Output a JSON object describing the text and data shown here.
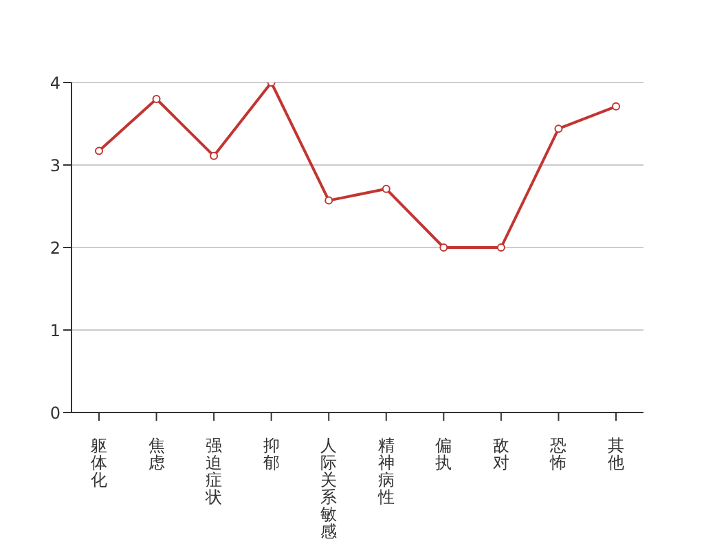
{
  "chart_data": {
    "type": "line",
    "categories": [
      "躯体化",
      "焦虑",
      "强迫症状",
      "抑郁",
      "人际关系敏感",
      "精神病性",
      "偏执",
      "敌对",
      "恐怖",
      "其他"
    ],
    "series": [
      {
        "color": "#c23531",
        "values": [
          3.17,
          3.8,
          3.11,
          4,
          2.57,
          2.71,
          2,
          2,
          3.44,
          3.71
        ]
      }
    ],
    "ylim": [
      0,
      4
    ],
    "yticks": [
      0,
      1,
      2,
      3,
      4
    ],
    "grid": "y",
    "marker": "circle",
    "line_style": "solid"
  }
}
